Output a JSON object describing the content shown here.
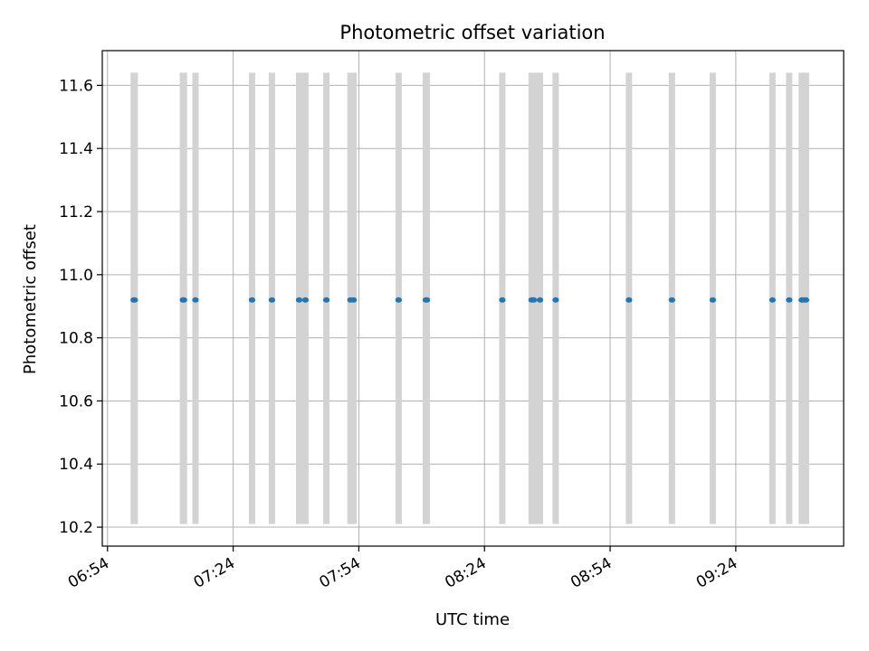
{
  "chart_data": {
    "type": "scatter",
    "title": "Photometric offset variation",
    "xlabel": "UTC time",
    "ylabel": "Photometric offset",
    "x_unit": "time of day (HH:MM)",
    "xlim": [
      "06:52:45",
      "09:49:45"
    ],
    "ylim": [
      10.14,
      11.71
    ],
    "x_ticks": [
      "06:54",
      "07:24",
      "07:54",
      "08:24",
      "08:54",
      "09:24"
    ],
    "y_ticks": [
      10.2,
      10.4,
      10.6,
      10.8,
      11.0,
      11.2,
      11.4,
      11.6
    ],
    "grid": true,
    "point_color": "#1f77b4",
    "band_color": "#d3d3d3",
    "band_range": [
      10.21,
      11.64
    ],
    "points": [
      {
        "x": "07:00:15",
        "y": 10.92
      },
      {
        "x": "07:00:30",
        "y": 10.92
      },
      {
        "x": "07:12:00",
        "y": 10.92
      },
      {
        "x": "07:12:15",
        "y": 10.92
      },
      {
        "x": "07:15:00",
        "y": 10.92
      },
      {
        "x": "07:28:30",
        "y": 10.92
      },
      {
        "x": "07:33:15",
        "y": 10.92
      },
      {
        "x": "07:39:45",
        "y": 10.92
      },
      {
        "x": "07:41:15",
        "y": 10.92
      },
      {
        "x": "07:46:15",
        "y": 10.92
      },
      {
        "x": "07:52:00",
        "y": 10.92
      },
      {
        "x": "07:52:45",
        "y": 10.92
      },
      {
        "x": "08:03:30",
        "y": 10.92
      },
      {
        "x": "08:10:00",
        "y": 10.92
      },
      {
        "x": "08:10:15",
        "y": 10.92
      },
      {
        "x": "08:28:15",
        "y": 10.92
      },
      {
        "x": "08:35:15",
        "y": 10.92
      },
      {
        "x": "08:35:45",
        "y": 10.92
      },
      {
        "x": "08:37:15",
        "y": 10.92
      },
      {
        "x": "08:41:00",
        "y": 10.92
      },
      {
        "x": "08:58:30",
        "y": 10.92
      },
      {
        "x": "09:08:45",
        "y": 10.92
      },
      {
        "x": "09:18:30",
        "y": 10.92
      },
      {
        "x": "09:32:45",
        "y": 10.92
      },
      {
        "x": "09:36:45",
        "y": 10.92
      },
      {
        "x": "09:39:45",
        "y": 10.92
      },
      {
        "x": "09:40:15",
        "y": 10.92
      },
      {
        "x": "09:40:45",
        "y": 10.92
      }
    ]
  }
}
